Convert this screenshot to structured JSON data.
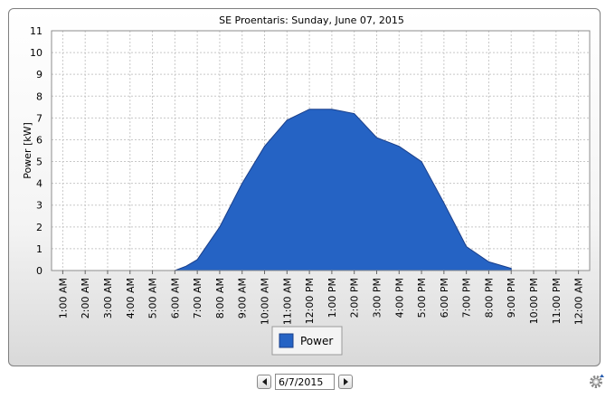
{
  "chart_data": {
    "type": "area",
    "title": "SE Proentaris: Sunday, June 07, 2015",
    "ylabel": "Power [kW]",
    "xlabel": "",
    "ylim": [
      0,
      11
    ],
    "yticks": [
      "0",
      "1",
      "2",
      "3",
      "4",
      "5",
      "6",
      "7",
      "8",
      "9",
      "10",
      "11"
    ],
    "categories": [
      "1:00 AM",
      "2:00 AM",
      "3:00 AM",
      "4:00 AM",
      "5:00 AM",
      "6:00 AM",
      "7:00 AM",
      "8:00 AM",
      "9:00 AM",
      "10:00 AM",
      "11:00 AM",
      "12:00 PM",
      "1:00 PM",
      "2:00 PM",
      "3:00 PM",
      "4:00 PM",
      "5:00 PM",
      "6:00 PM",
      "7:00 PM",
      "8:00 PM",
      "9:00 PM",
      "10:00 PM",
      "11:00 PM",
      "12:00 AM"
    ],
    "grid": true,
    "legend_position": "bottom-center",
    "series": [
      {
        "name": "Power",
        "color": "#2563c4",
        "points": [
          [
            "6:00 AM",
            0
          ],
          [
            "6:30 AM",
            0.2
          ],
          [
            "7:00 AM",
            0.5
          ],
          [
            "8:00 AM",
            2.0
          ],
          [
            "9:00 AM",
            4.0
          ],
          [
            "10:00 AM",
            5.7
          ],
          [
            "11:00 AM",
            6.9
          ],
          [
            "12:00 PM",
            7.4
          ],
          [
            "1:00 PM",
            7.4
          ],
          [
            "2:00 PM",
            7.2
          ],
          [
            "3:00 PM",
            6.1
          ],
          [
            "4:00 PM",
            5.7
          ],
          [
            "5:00 PM",
            5.0
          ],
          [
            "6:00 PM",
            3.1
          ],
          [
            "7:00 PM",
            1.1
          ],
          [
            "8:00 PM",
            0.4
          ],
          [
            "9:00 PM",
            0.1
          ]
        ]
      }
    ]
  },
  "navigator": {
    "date_value": "6/7/2015"
  }
}
